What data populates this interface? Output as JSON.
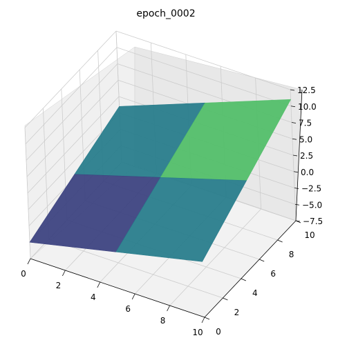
{
  "chart_data": {
    "type": "surface3d",
    "title": "epoch_0002",
    "xlabel": "",
    "ylabel": "",
    "zlabel": "",
    "xlim": [
      0,
      10
    ],
    "ylim": [
      0,
      10
    ],
    "zlim": [
      -7.5,
      12.5
    ],
    "x_ticks": [
      "0",
      "2",
      "4",
      "6",
      "8",
      "10"
    ],
    "y_ticks": [
      "0",
      "2",
      "4",
      "6",
      "8",
      "10"
    ],
    "z_ticks": [
      "−7.5",
      "−5.0",
      "−2.5",
      "0.0",
      "2.5",
      "5.0",
      "7.5",
      "10.0",
      "12.5"
    ],
    "grid": true,
    "colormap": "viridis",
    "surface": {
      "x": [
        0,
        5,
        10
      ],
      "y": [
        0,
        5,
        10
      ],
      "z": [
        [
          -5.0,
          -2.0,
          1.0
        ],
        [
          -2.0,
          2.0,
          6.0
        ],
        [
          1.0,
          6.0,
          11.0
        ]
      ]
    }
  }
}
